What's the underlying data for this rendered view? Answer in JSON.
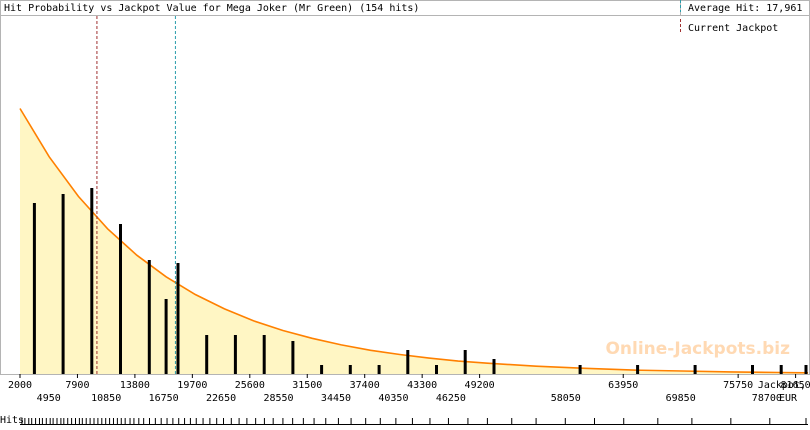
{
  "chart_data": {
    "type": "bar",
    "title": "Hit Probability vs Jackpot Value for Mega Joker (Mr Green) (154 hits)",
    "xlabel": "Jackpot, EUR",
    "xlabel_lines": [
      "Jackpot,",
      "EUR"
    ],
    "hits_label": "Hits",
    "xlim": [
      2000,
      82000
    ],
    "grid": false,
    "legend_position": "top-right",
    "average_hit": {
      "label": "Average Hit: 17,961",
      "value": 17961,
      "color": "#2a9dab"
    },
    "current_jackpot": {
      "label": "Current Jackpot",
      "value": 9900,
      "color": "#a03030"
    },
    "ticks_upper": [
      2000,
      7900,
      13800,
      19700,
      25600,
      31500,
      37400,
      43300,
      49200,
      63950,
      75750,
      81650
    ],
    "ticks_lower": [
      4950,
      10850,
      16750,
      22650,
      28550,
      34450,
      40350,
      46250,
      58050,
      69850,
      78700
    ],
    "ticks_upper_labels": [
      "2000",
      "7900",
      "13800",
      "19700",
      "25600",
      "31500",
      "37400",
      "43300",
      "49200",
      "63950",
      "75750",
      "81650"
    ],
    "ticks_lower_labels": [
      "4950",
      "10850",
      "16750",
      "22650",
      "28550",
      "34450",
      "40350",
      "46250",
      "58050",
      "69850",
      "78700"
    ],
    "bars": {
      "x": [
        3475,
        6425,
        9375,
        12325,
        15275,
        17000,
        18225,
        21175,
        24125,
        27075,
        30025,
        32975,
        35925,
        38875,
        41825,
        44775,
        47725,
        50675,
        59525,
        65425,
        71325,
        77225,
        80175,
        83125
      ],
      "values": [
        0.57,
        0.6,
        0.62,
        0.5,
        0.38,
        0.25,
        0.37,
        0.13,
        0.13,
        0.13,
        0.11,
        0.03,
        0.03,
        0.03,
        0.08,
        0.03,
        0.08,
        0.05,
        0.03,
        0.03,
        0.03,
        0.03,
        0.03,
        0.03
      ],
      "color": "#000000"
    },
    "fit_curve": {
      "x": [
        2000,
        5000,
        8000,
        11000,
        14000,
        17000,
        20000,
        23000,
        26000,
        29000,
        32000,
        35000,
        38000,
        41000,
        44000,
        47000,
        50000,
        55000,
        60000,
        65000,
        70000,
        75000,
        80000,
        83000
      ],
      "y": [
        0.885,
        0.724,
        0.592,
        0.484,
        0.396,
        0.324,
        0.265,
        0.217,
        0.177,
        0.145,
        0.119,
        0.097,
        0.079,
        0.065,
        0.053,
        0.043,
        0.036,
        0.026,
        0.019,
        0.013,
        0.01,
        0.007,
        0.005,
        0.004
      ],
      "color": "#ff8000",
      "fill": "#fff6c4"
    },
    "ylim": [
      0,
      1
    ],
    "watermark": "Online-Jackpots.biz",
    "hits_x": [
      2200,
      2500,
      2900,
      3200,
      3600,
      4000,
      4300,
      4700,
      5100,
      5400,
      5800,
      6200,
      6500,
      6900,
      7300,
      7700,
      8100,
      8400,
      8800,
      9200,
      9600,
      10000,
      10400,
      10800,
      11200,
      11600,
      12000,
      12400,
      12800,
      13300,
      13700,
      14200,
      14700,
      15300,
      15900,
      16500,
      17100,
      17700,
      18300,
      18900,
      19500,
      20100,
      20800,
      21500,
      22200,
      22900,
      23700,
      24500,
      25300,
      26200,
      27100,
      28000,
      29000,
      30000,
      31100,
      32200,
      33400,
      34700,
      36000,
      37500,
      39000,
      40600,
      42300,
      44100,
      46000,
      48000,
      50000,
      52500,
      55000,
      58000,
      61000,
      64000,
      67500,
      71000,
      75000,
      79000,
      83000
    ]
  }
}
